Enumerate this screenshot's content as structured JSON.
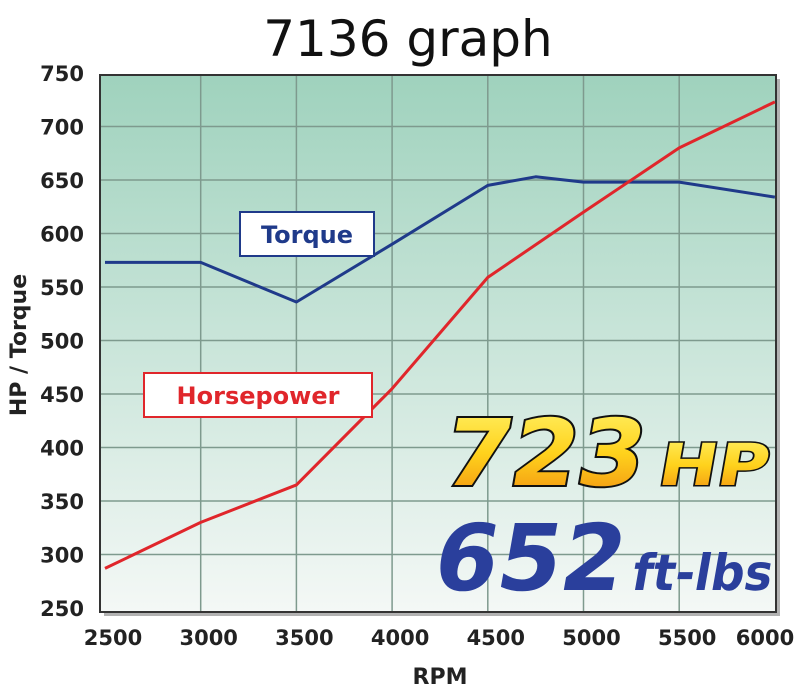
{
  "chart_data": {
    "type": "line",
    "title": "7136 graph",
    "xlabel": "RPM",
    "ylabel": "HP / Torque",
    "xlim": [
      2500,
      6000
    ],
    "ylim": [
      250,
      750
    ],
    "x_ticks": [
      "2500",
      "3000",
      "3500",
      "4000",
      "4500",
      "5000",
      "5500",
      "6000"
    ],
    "y_ticks": [
      "250",
      "300",
      "350",
      "400",
      "450",
      "500",
      "550",
      "600",
      "650",
      "700",
      "750"
    ],
    "grid": true,
    "series": [
      {
        "name": "Torque",
        "color": "#1f3a8a",
        "x": [
          2500,
          3000,
          3500,
          4000,
          4500,
          4750,
          5000,
          5500,
          6000
        ],
        "y": [
          573,
          573,
          536,
          590,
          645,
          653,
          648,
          648,
          634
        ]
      },
      {
        "name": "Horsepower",
        "color": "#e0262b",
        "x": [
          2500,
          3000,
          3500,
          4000,
          4500,
          5000,
          5500,
          6000
        ],
        "y": [
          287,
          330,
          365,
          455,
          559,
          620,
          680,
          723
        ]
      }
    ],
    "annotations": {
      "hp_peak": {
        "value": "723",
        "unit": "HP"
      },
      "torque_peak": {
        "value": "652",
        "unit": "ft-lbs"
      }
    },
    "colors": {
      "plot_top": "#9fd2bd",
      "plot_bottom": "#f2f7f5",
      "grid": "#7e9a8e"
    }
  }
}
